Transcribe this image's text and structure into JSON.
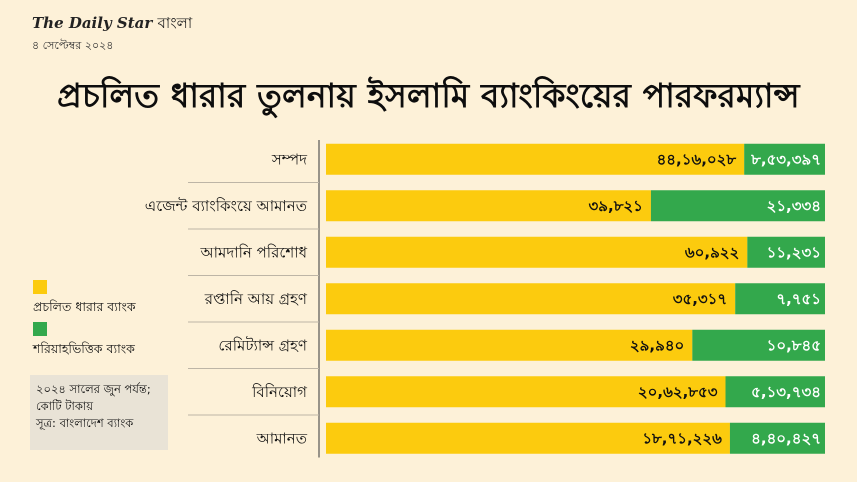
{
  "brand": {
    "name": "The Daily Star",
    "lang": "বাংলা"
  },
  "date": "৪ সেপ্টেম্বর ২০২৪",
  "legend": {
    "conventional": "প্রচলিত ধারার ব্যাংক",
    "islamic": "শরিয়াহভিত্তিক ব্যাংক"
  },
  "note": {
    "line1": "২০২৪ সালের জুন পর্যন্ত;",
    "line2": "কোটি টাকায়",
    "line3": "সূত্র: বাংলাদেশ ব্যাংক"
  },
  "colors": {
    "conventional": "#fccb0e",
    "islamic": "#33a84c"
  },
  "chart_data": {
    "type": "bar",
    "title": "প্রচলিত ধারার তুলনায় ইসলামি ব্যাংকিংয়ের পারফরম্যান্স",
    "orientation": "horizontal",
    "stacked": "percent",
    "categories": [
      "সম্পদ",
      "এজেন্ট ব্যাংকিংয়ে আমানত",
      "আমদানি পরিশোধ",
      "রপ্তানি আয় গ্রহণ",
      "রেমিট্যান্স গ্রহণ",
      "বিনিয়োগ",
      "আমানত"
    ],
    "series": [
      {
        "name": "প্রচলিত ধারার ব্যাংক",
        "values": [
          4416028,
          39821,
          60922,
          35317,
          29940,
          2062853,
          1871226
        ],
        "labels": [
          "৪৪,১৬,০২৮",
          "৩৯,৮২১",
          "৬০,৯২২",
          "৩৫,৩১৭",
          "২৯,৯৪০",
          "২০,৬২,৮৫৩",
          "১৮,৭১,২২৬"
        ]
      },
      {
        "name": "শরিয়াহভিত্তিক ব্যাংক",
        "values": [
          853397,
          21334,
          11231,
          7751,
          10845,
          513734,
          440427
        ],
        "labels": [
          "৮,৫৩,৩৯৭",
          "২১,৩৩৪",
          "১১,২৩১",
          "৭,৭৫১",
          "১০,৮৪৫",
          "৫,১৩,৭৩৪",
          "৪,৪০,৪২৭"
        ]
      }
    ]
  }
}
